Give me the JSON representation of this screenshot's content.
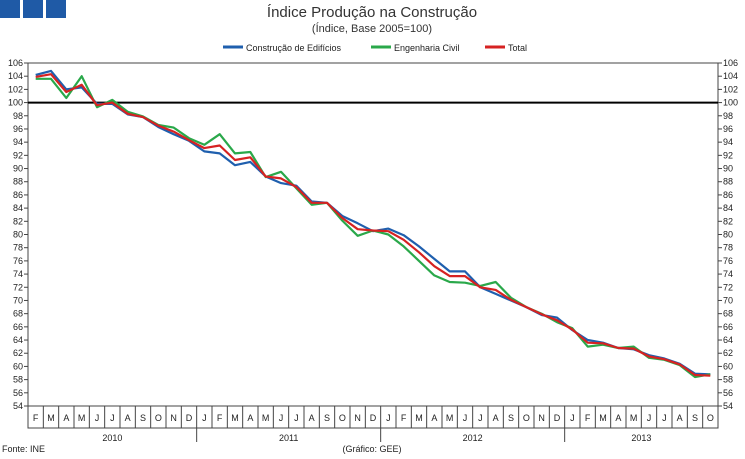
{
  "chart_data": {
    "type": "line",
    "title": "Índice Produção na Construção",
    "subtitle": "(Índice, Base 2005=100)",
    "source": "Fonte: INE",
    "credit": "(Gráfico: GEE)",
    "ylim": [
      54,
      106
    ],
    "yticks": [
      54,
      56,
      58,
      60,
      62,
      64,
      66,
      68,
      70,
      72,
      74,
      76,
      78,
      80,
      82,
      84,
      86,
      88,
      90,
      92,
      94,
      96,
      98,
      100,
      102,
      104,
      106
    ],
    "reference_line": 100,
    "month_labels": [
      "F",
      "M",
      "A",
      "M",
      "J",
      "J",
      "A",
      "S",
      "O",
      "N",
      "D",
      "J",
      "F",
      "M",
      "A",
      "M",
      "J",
      "J",
      "A",
      "S",
      "O",
      "N",
      "D",
      "J",
      "F",
      "M",
      "A",
      "M",
      "J",
      "J",
      "A",
      "S",
      "O",
      "N",
      "D",
      "J",
      "F",
      "M",
      "A",
      "M",
      "J",
      "J",
      "A",
      "S",
      "O"
    ],
    "years": [
      {
        "label": "2010",
        "start": 0,
        "end": 10
      },
      {
        "label": "2011",
        "start": 11,
        "end": 22
      },
      {
        "label": "2012",
        "start": 23,
        "end": 34
      },
      {
        "label": "2013",
        "start": 35,
        "end": 44
      }
    ],
    "series": [
      {
        "name": "Construção de Edifícios",
        "color": "#1f5fae",
        "values": [
          104.2,
          104.8,
          102.0,
          102.3,
          99.8,
          99.8,
          98.2,
          97.8,
          96.3,
          95.2,
          94.2,
          92.6,
          92.3,
          90.5,
          91.0,
          88.8,
          87.8,
          87.4,
          85.0,
          84.8,
          82.8,
          81.7,
          80.5,
          80.9,
          79.9,
          78.2,
          76.3,
          74.4,
          74.4,
          72.0,
          71.0,
          70.0,
          69.0,
          67.8,
          67.4,
          65.5,
          64.0,
          63.6,
          62.8,
          62.6,
          61.7,
          61.2,
          60.4,
          58.9,
          58.8
        ]
      },
      {
        "name": "Engenharia Civil",
        "color": "#2aa84a",
        "values": [
          103.6,
          103.6,
          100.7,
          104.0,
          99.3,
          100.4,
          98.6,
          97.9,
          96.6,
          96.2,
          94.6,
          93.6,
          95.2,
          92.3,
          92.5,
          88.7,
          89.5,
          87.0,
          84.5,
          84.8,
          82.1,
          79.8,
          80.6,
          80.0,
          78.2,
          76.0,
          73.8,
          72.8,
          72.7,
          72.2,
          72.8,
          70.4,
          69.0,
          68.0,
          66.7,
          65.8,
          63.0,
          63.3,
          62.8,
          63.0,
          61.3,
          61.0,
          60.2,
          58.4,
          58.8
        ]
      },
      {
        "name": "Total",
        "color": "#d62222",
        "values": [
          103.9,
          104.3,
          101.6,
          102.7,
          99.6,
          100.0,
          98.3,
          97.8,
          96.5,
          95.6,
          94.3,
          93.1,
          93.5,
          91.3,
          91.7,
          88.8,
          88.5,
          87.2,
          84.8,
          84.8,
          82.5,
          80.8,
          80.6,
          80.5,
          79.2,
          77.3,
          75.2,
          73.7,
          73.7,
          72.0,
          71.6,
          70.1,
          69.0,
          67.9,
          67.0,
          65.6,
          63.6,
          63.5,
          62.8,
          62.7,
          61.5,
          61.1,
          60.3,
          58.7,
          58.6
        ]
      }
    ]
  }
}
